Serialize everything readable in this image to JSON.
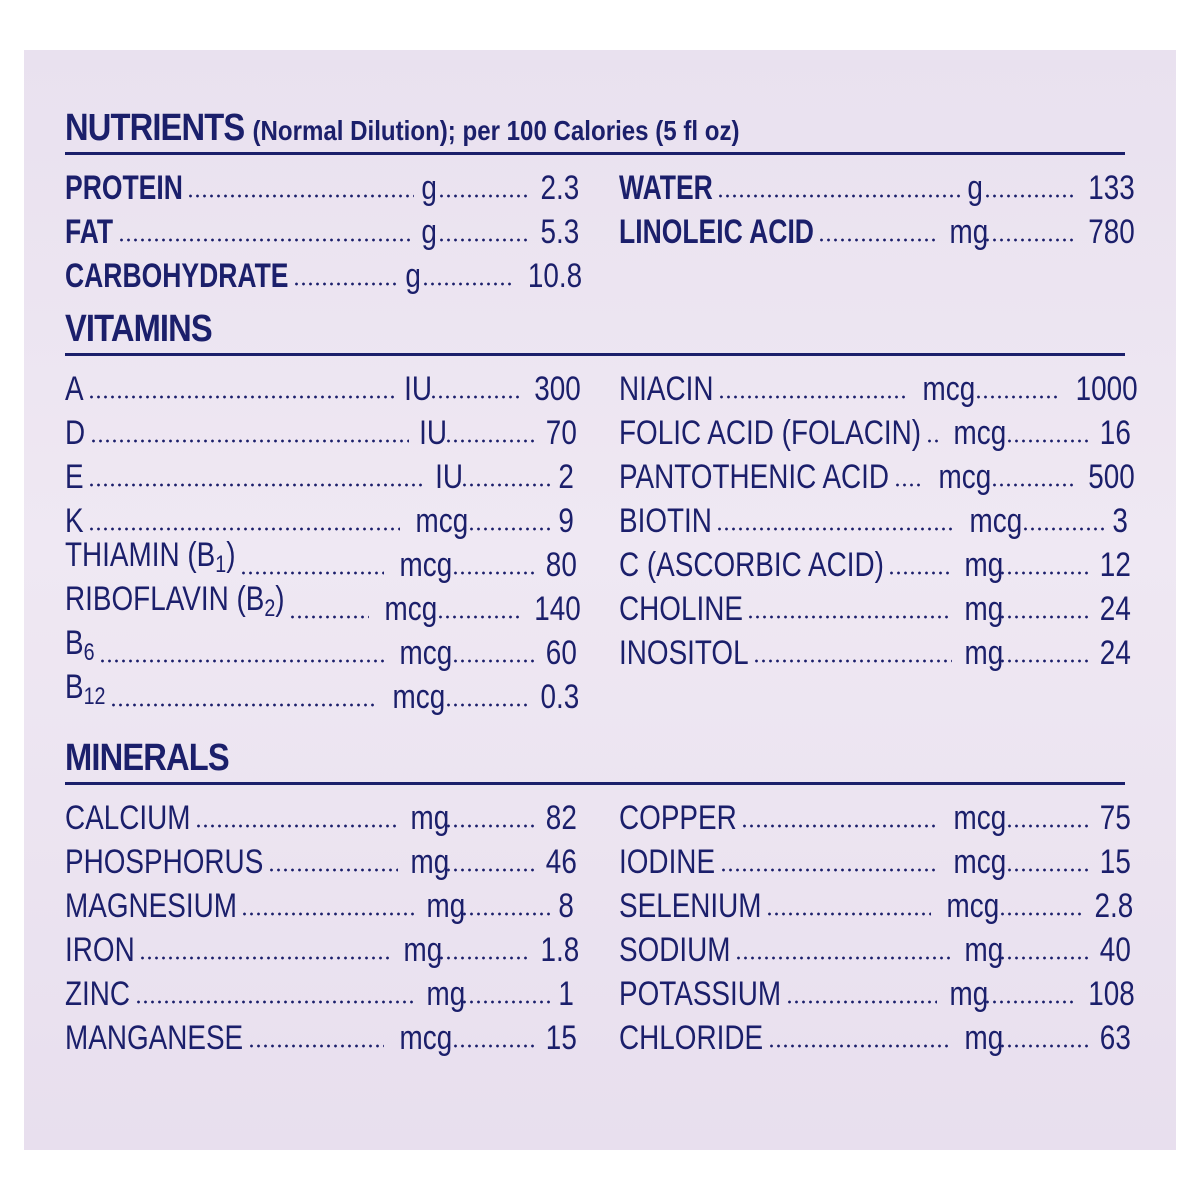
{
  "nutrients": {
    "title": "NUTRIENTS",
    "subtitle": "(Normal Dilution); per 100 Calories (5 fl oz)",
    "left": [
      {
        "name": "PROTEIN",
        "unit": "g",
        "value": "2.3"
      },
      {
        "name": "FAT",
        "unit": "g",
        "value": "5.3"
      },
      {
        "name": "CARBOHYDRATE",
        "unit": "g",
        "value": "10.8"
      }
    ],
    "right": [
      {
        "name": "WATER",
        "unit": "g",
        "value": "133"
      },
      {
        "name": "LINOLEIC ACID",
        "unit": "mg",
        "value": "780"
      }
    ]
  },
  "vitamins": {
    "title": "VITAMINS",
    "left": [
      {
        "name": "A",
        "unit": "IU",
        "value": "300"
      },
      {
        "name": "D",
        "unit": "IU",
        "value": "70"
      },
      {
        "name": "E",
        "unit": "IU",
        "value": "2"
      },
      {
        "name": "K",
        "unit": "mcg",
        "value": "9"
      },
      {
        "name": "THIAMIN (B",
        "sub": "1",
        "after": ")",
        "unit": "mcg",
        "value": "80"
      },
      {
        "name": "RIBOFLAVIN (B",
        "sub": "2",
        "after": ")",
        "unit": "mcg",
        "value": "140"
      },
      {
        "name": "B",
        "sub": "6",
        "after": "",
        "unit": "mcg",
        "value": "60"
      },
      {
        "name": "B",
        "sub": "12",
        "after": "",
        "unit": "mcg",
        "value": "0.3"
      }
    ],
    "right": [
      {
        "name": "NIACIN",
        "unit": "mcg",
        "value": "1000"
      },
      {
        "name": "FOLIC ACID (FOLACIN)",
        "unit": "mcg",
        "value": "16"
      },
      {
        "name": "PANTOTHENIC ACID",
        "unit": "mcg",
        "value": "500"
      },
      {
        "name": "BIOTIN",
        "unit": "mcg",
        "value": "3"
      },
      {
        "name": "C (ASCORBIC ACID)",
        "unit": "mg",
        "value": "12"
      },
      {
        "name": "CHOLINE",
        "unit": "mg",
        "value": "24"
      },
      {
        "name": "INOSITOL",
        "unit": "mg",
        "value": "24"
      }
    ]
  },
  "minerals": {
    "title": "MINERALS",
    "left": [
      {
        "name": "CALCIUM",
        "unit": "mg",
        "value": "82"
      },
      {
        "name": "PHOSPHORUS",
        "unit": "mg",
        "value": "46"
      },
      {
        "name": "MAGNESIUM",
        "unit": "mg",
        "value": "8"
      },
      {
        "name": "IRON",
        "unit": "mg",
        "value": "1.8"
      },
      {
        "name": "ZINC",
        "unit": "mg",
        "value": "1"
      },
      {
        "name": "MANGANESE",
        "unit": "mcg",
        "value": "15"
      }
    ],
    "right": [
      {
        "name": "COPPER",
        "unit": "mcg",
        "value": "75"
      },
      {
        "name": "IODINE",
        "unit": "mcg",
        "value": "15"
      },
      {
        "name": "SELENIUM",
        "unit": "mcg",
        "value": "2.8"
      },
      {
        "name": "SODIUM",
        "unit": "mg",
        "value": "40"
      },
      {
        "name": "POTASSIUM",
        "unit": "mg",
        "value": "108"
      },
      {
        "name": "CHLORIDE",
        "unit": "mg",
        "value": "63"
      }
    ]
  },
  "colors": {
    "ink": "#1b1f6b",
    "background": "#ece4f1"
  }
}
